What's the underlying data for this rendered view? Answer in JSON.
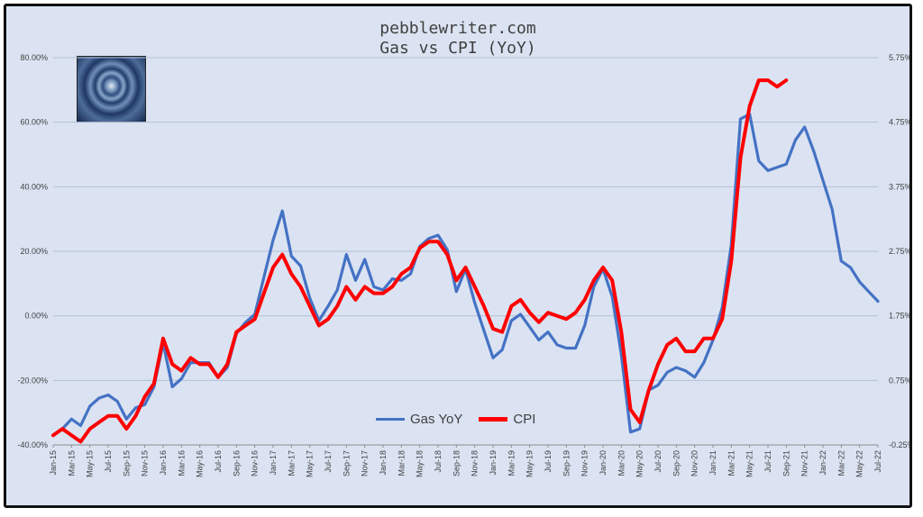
{
  "title": [
    "pebblewriter.com",
    "Gas vs CPI (YoY)"
  ],
  "chart_data": {
    "type": "line",
    "x_labels": [
      "Jan-15",
      "Mar-15",
      "May-15",
      "Jul-15",
      "Sep-15",
      "Nov-15",
      "Jan-16",
      "Mar-16",
      "May-16",
      "Jul-16",
      "Sep-16",
      "Nov-16",
      "Jan-17",
      "Mar-17",
      "May-17",
      "Jul-17",
      "Sep-17",
      "Nov-17",
      "Jan-18",
      "Mar-18",
      "May-18",
      "Jul-18",
      "Sep-18",
      "Nov-18",
      "Jan-19",
      "Mar-19",
      "May-19",
      "Jul-19",
      "Sep-19",
      "Nov-19",
      "Jan-20",
      "Mar-20",
      "May-20",
      "Jul-20",
      "Sep-20",
      "Nov-20",
      "Jan-21",
      "Mar-21",
      "May-21",
      "Jul-21",
      "Sep-21",
      "Nov-21",
      "Jan-22",
      "Mar-22",
      "May-22",
      "Jul-22"
    ],
    "y_left": {
      "ylim": [
        -40,
        80
      ],
      "ticks": [
        "80.00%",
        "60.00%",
        "40.00%",
        "20.00%",
        "0.00%",
        "-20.00%",
        "-40.00%"
      ]
    },
    "y_right": {
      "ylim": [
        -0.25,
        5.75
      ],
      "ticks": [
        "5.75%",
        "4.75%",
        "3.75%",
        "2.75%",
        "1.75%",
        "0.75%",
        "-0.25%"
      ]
    },
    "grid": true,
    "legend_position": "bottom-center",
    "series": [
      {
        "name": "Gas YoY",
        "axis": "left",
        "color": "#4472c4",
        "values": [
          -37.0,
          -35.0,
          -32.0,
          -34.0,
          -28.0,
          -25.5,
          -24.5,
          -26.5,
          -32.0,
          -28.5,
          -27.5,
          -22.0,
          -8.5,
          -22.0,
          -19.5,
          -14.5,
          -14.5,
          -14.5,
          -19.0,
          -16.0,
          -5.5,
          -2.0,
          0.5,
          12.0,
          23.5,
          32.5,
          18.5,
          15.5,
          5.5,
          -1.5,
          3.0,
          8.0,
          19.0,
          11.0,
          17.5,
          9.0,
          8.0,
          11.5,
          11.0,
          13.0,
          21.5,
          24.0,
          25.0,
          20.5,
          7.5,
          14.5,
          4.0,
          -4.5,
          -13.0,
          -10.5,
          -1.5,
          0.5,
          -3.5,
          -7.5,
          -5.0,
          -9.0,
          -10.0,
          -10.0,
          -3.0,
          9.0,
          14.5,
          6.0,
          -12.0,
          -36.0,
          -35.0,
          -23.0,
          -21.5,
          -17.5,
          -16.0,
          -17.0,
          -19.0,
          -14.5,
          -7.5,
          2.5,
          22.0,
          61.0,
          62.5,
          48.0,
          45.0,
          46.0,
          47.0,
          54.5,
          58.5,
          51.0,
          42.0,
          33.0,
          17.0,
          15.0,
          10.5,
          7.5,
          4.5
        ]
      },
      {
        "name": "CPI",
        "axis": "right",
        "color": "#ff0000",
        "values": [
          -0.1,
          0.0,
          -0.1,
          -0.2,
          0.0,
          0.1,
          0.2,
          0.2,
          0.0,
          0.2,
          0.5,
          0.7,
          1.4,
          1.0,
          0.9,
          1.1,
          1.0,
          1.0,
          0.8,
          1.0,
          1.5,
          1.6,
          1.7,
          2.1,
          2.5,
          2.7,
          2.4,
          2.2,
          1.9,
          1.6,
          1.7,
          1.9,
          2.2,
          2.0,
          2.2,
          2.1,
          2.1,
          2.2,
          2.4,
          2.5,
          2.8,
          2.9,
          2.9,
          2.7,
          2.3,
          2.5,
          2.2,
          1.9,
          1.55,
          1.5,
          1.9,
          2.0,
          1.8,
          1.65,
          1.8,
          1.75,
          1.7,
          1.8,
          2.0,
          2.3,
          2.5,
          2.3,
          1.5,
          0.3,
          0.1,
          0.6,
          1.0,
          1.3,
          1.4,
          1.2,
          1.2,
          1.4,
          1.4,
          1.7,
          2.6,
          4.2,
          5.0,
          5.4,
          5.4,
          5.3,
          5.4
        ]
      }
    ]
  }
}
